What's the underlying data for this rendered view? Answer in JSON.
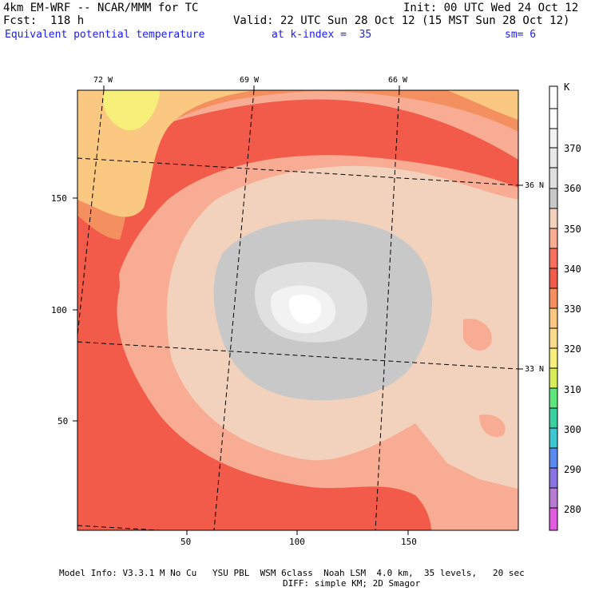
{
  "header": {
    "model": "4km EM-WRF -- NCAR/MMM for TC",
    "init": "Init: 00 UTC Wed 24 Oct 12",
    "fcst": "Fcst:  118 h",
    "valid": "Valid: 22 UTC Sun 28 Oct 12 (15 MST Sun 28 Oct 12)",
    "field": "Equivalent potential temperature",
    "level": "at k-index =  35",
    "smooth": "sm= 6"
  },
  "map": {
    "lon_labels": [
      "72 W",
      "69 W",
      "66 W"
    ],
    "lat_labels": [
      "36 N",
      "33 N"
    ],
    "x_ticks": [
      "50",
      "100",
      "150"
    ],
    "y_ticks": [
      "150",
      "100",
      "50"
    ],
    "grid_x_range": [
      0,
      200
    ],
    "grid_y_range": [
      0,
      200
    ]
  },
  "colorbar": {
    "unit": "K",
    "levels": [
      "370",
      "360",
      "350",
      "340",
      "330",
      "320",
      "310",
      "300",
      "290",
      "280"
    ],
    "colors": [
      "#ffffff",
      "#f2f2f2",
      "#e0e0e0",
      "#c8c8c8",
      "#f2d2bc",
      "#f8ac94",
      "#f25a4a",
      "#f49060",
      "#fac880",
      "#f6f07a",
      "#d6ec5a",
      "#5ee67c",
      "#3cd0c4",
      "#5a8af0",
      "#8a74e4",
      "#b87cd4",
      "#e05ce0"
    ]
  },
  "footer": {
    "line1": "Model Info: V3.3.1 M No Cu   YSU PBL  WSM 6class  Noah LSM  4.0 km,  35 levels,   20 sec",
    "line2": "DIFF: simple KM; 2D Smagor"
  }
}
